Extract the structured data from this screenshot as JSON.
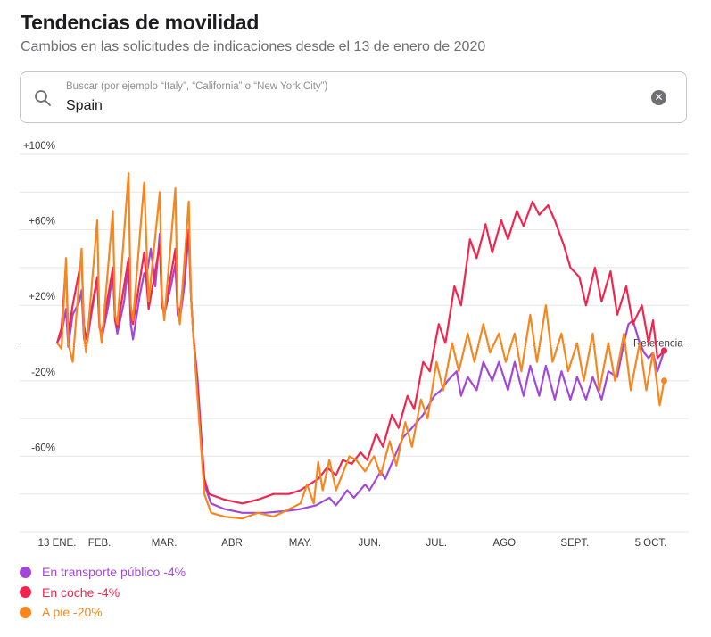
{
  "header": {
    "title": "Tendencias de movilidad",
    "subtitle": "Cambios en las solicitudes de indicaciones desde el 13 de enero de 2020"
  },
  "search": {
    "placeholder": "Buscar (por ejemplo “Italy”, “California” o “New York City”)",
    "value": "Spain",
    "clear_icon": "clear-icon",
    "search_icon": "magnifying-glass-icon"
  },
  "chart_data": {
    "type": "line",
    "x_unit": "date",
    "x_range": [
      "2020-01-13",
      "2020-10-22"
    ],
    "ylim": [
      -100,
      100
    ],
    "yticks": [
      {
        "value": 100,
        "label": "+100%"
      },
      {
        "value": 60,
        "label": "+60%"
      },
      {
        "value": 20,
        "label": "+20%"
      },
      {
        "value": -20,
        "label": "-20%"
      },
      {
        "value": -60,
        "label": "-60%"
      }
    ],
    "gridlines": [
      100,
      80,
      60,
      40,
      20,
      -20,
      -40,
      -60,
      -80,
      -100
    ],
    "xticks": [
      {
        "date": "2020-01-13",
        "label": "13 ENE."
      },
      {
        "date": "2020-02-01",
        "label": "FEB."
      },
      {
        "date": "2020-03-01",
        "label": "MAR."
      },
      {
        "date": "2020-04-01",
        "label": "ABR."
      },
      {
        "date": "2020-05-01",
        "label": "MAY."
      },
      {
        "date": "2020-06-01",
        "label": "JUN."
      },
      {
        "date": "2020-07-01",
        "label": "JUL."
      },
      {
        "date": "2020-08-01",
        "label": "AGO."
      },
      {
        "date": "2020-09-01",
        "label": "SEPT."
      },
      {
        "date": "2020-10-05",
        "label": "5 OCT."
      }
    ],
    "baseline": {
      "value": 0,
      "label": "Referencia"
    },
    "series": [
      {
        "name": "En transporte público",
        "legend": "En transporte público -4%",
        "color": "#a348d6",
        "points": [
          [
            "2020-01-13",
            0
          ],
          [
            "2020-01-15",
            5
          ],
          [
            "2020-01-17",
            18
          ],
          [
            "2020-01-18",
            -2
          ],
          [
            "2020-01-20",
            15
          ],
          [
            "2020-01-23",
            22
          ],
          [
            "2020-01-24",
            28
          ],
          [
            "2020-01-25",
            3
          ],
          [
            "2020-01-26",
            -3
          ],
          [
            "2020-01-29",
            20
          ],
          [
            "2020-01-31",
            33
          ],
          [
            "2020-02-01",
            10
          ],
          [
            "2020-02-02",
            2
          ],
          [
            "2020-02-05",
            20
          ],
          [
            "2020-02-07",
            38
          ],
          [
            "2020-02-08",
            12
          ],
          [
            "2020-02-09",
            5
          ],
          [
            "2020-02-12",
            22
          ],
          [
            "2020-02-14",
            42
          ],
          [
            "2020-02-15",
            10
          ],
          [
            "2020-02-16",
            2
          ],
          [
            "2020-02-19",
            25
          ],
          [
            "2020-02-21",
            37
          ],
          [
            "2020-02-22",
            35
          ],
          [
            "2020-02-24",
            50
          ],
          [
            "2020-02-26",
            30
          ],
          [
            "2020-02-28",
            58
          ],
          [
            "2020-02-29",
            22
          ],
          [
            "2020-03-01",
            15
          ],
          [
            "2020-03-04",
            30
          ],
          [
            "2020-03-06",
            42
          ],
          [
            "2020-03-07",
            15
          ],
          [
            "2020-03-08",
            12
          ],
          [
            "2020-03-10",
            30
          ],
          [
            "2020-03-12",
            58
          ],
          [
            "2020-03-13",
            25
          ],
          [
            "2020-03-14",
            5
          ],
          [
            "2020-03-16",
            -20
          ],
          [
            "2020-03-19",
            -75
          ],
          [
            "2020-03-22",
            -85
          ],
          [
            "2020-03-28",
            -88
          ],
          [
            "2020-04-05",
            -90
          ],
          [
            "2020-04-15",
            -90
          ],
          [
            "2020-04-25",
            -89
          ],
          [
            "2020-05-01",
            -88
          ],
          [
            "2020-05-08",
            -86
          ],
          [
            "2020-05-14",
            -82
          ],
          [
            "2020-05-17",
            -86
          ],
          [
            "2020-05-22",
            -78
          ],
          [
            "2020-05-25",
            -82
          ],
          [
            "2020-05-30",
            -75
          ],
          [
            "2020-06-01",
            -78
          ],
          [
            "2020-06-06",
            -68
          ],
          [
            "2020-06-08",
            -72
          ],
          [
            "2020-06-13",
            -58
          ],
          [
            "2020-06-16",
            -50
          ],
          [
            "2020-06-20",
            -45
          ],
          [
            "2020-06-25",
            -38
          ],
          [
            "2020-06-30",
            -28
          ],
          [
            "2020-07-03",
            -25
          ],
          [
            "2020-07-06",
            -20
          ],
          [
            "2020-07-10",
            -15
          ],
          [
            "2020-07-12",
            -28
          ],
          [
            "2020-07-15",
            -18
          ],
          [
            "2020-07-19",
            -25
          ],
          [
            "2020-07-22",
            -10
          ],
          [
            "2020-07-26",
            -20
          ],
          [
            "2020-07-29",
            -10
          ],
          [
            "2020-08-02",
            -25
          ],
          [
            "2020-08-05",
            -10
          ],
          [
            "2020-08-09",
            -28
          ],
          [
            "2020-08-12",
            -12
          ],
          [
            "2020-08-16",
            -28
          ],
          [
            "2020-08-19",
            -12
          ],
          [
            "2020-08-23",
            -30
          ],
          [
            "2020-08-26",
            -15
          ],
          [
            "2020-08-30",
            -30
          ],
          [
            "2020-09-02",
            -18
          ],
          [
            "2020-09-06",
            -30
          ],
          [
            "2020-09-09",
            -18
          ],
          [
            "2020-09-13",
            -30
          ],
          [
            "2020-09-16",
            -15
          ],
          [
            "2020-09-20",
            -18
          ],
          [
            "2020-09-23",
            0
          ],
          [
            "2020-09-25",
            10
          ],
          [
            "2020-09-27",
            12
          ],
          [
            "2020-09-30",
            0
          ],
          [
            "2020-10-02",
            -5
          ],
          [
            "2020-10-04",
            -8
          ],
          [
            "2020-10-06",
            -5
          ],
          [
            "2020-10-08",
            -15
          ],
          [
            "2020-10-11",
            -4
          ]
        ]
      },
      {
        "name": "En coche",
        "legend": "En coche -4%",
        "color": "#f0264f",
        "points": [
          [
            "2020-01-13",
            0
          ],
          [
            "2020-01-15",
            8
          ],
          [
            "2020-01-17",
            42
          ],
          [
            "2020-01-18",
            5
          ],
          [
            "2020-01-20",
            20
          ],
          [
            "2020-01-24",
            45
          ],
          [
            "2020-01-25",
            10
          ],
          [
            "2020-01-26",
            2
          ],
          [
            "2020-01-31",
            35
          ],
          [
            "2020-02-01",
            8
          ],
          [
            "2020-02-02",
            5
          ],
          [
            "2020-02-07",
            40
          ],
          [
            "2020-02-08",
            12
          ],
          [
            "2020-02-09",
            8
          ],
          [
            "2020-02-14",
            45
          ],
          [
            "2020-02-15",
            15
          ],
          [
            "2020-02-16",
            10
          ],
          [
            "2020-02-21",
            48
          ],
          [
            "2020-02-23",
            18
          ],
          [
            "2020-02-28",
            52
          ],
          [
            "2020-02-29",
            20
          ],
          [
            "2020-03-01",
            15
          ],
          [
            "2020-03-06",
            50
          ],
          [
            "2020-03-07",
            20
          ],
          [
            "2020-03-08",
            15
          ],
          [
            "2020-03-12",
            60
          ],
          [
            "2020-03-13",
            25
          ],
          [
            "2020-03-14",
            5
          ],
          [
            "2020-03-16",
            -25
          ],
          [
            "2020-03-19",
            -72
          ],
          [
            "2020-03-21",
            -80
          ],
          [
            "2020-03-28",
            -83
          ],
          [
            "2020-04-05",
            -85
          ],
          [
            "2020-04-12",
            -83
          ],
          [
            "2020-04-19",
            -80
          ],
          [
            "2020-04-26",
            -80
          ],
          [
            "2020-05-01",
            -78
          ],
          [
            "2020-05-05",
            -75
          ],
          [
            "2020-05-09",
            -72
          ],
          [
            "2020-05-13",
            -66
          ],
          [
            "2020-05-17",
            -70
          ],
          [
            "2020-05-20",
            -62
          ],
          [
            "2020-05-24",
            -64
          ],
          [
            "2020-05-28",
            -58
          ],
          [
            "2020-05-31",
            -62
          ],
          [
            "2020-06-04",
            -48
          ],
          [
            "2020-06-07",
            -55
          ],
          [
            "2020-06-11",
            -38
          ],
          [
            "2020-06-14",
            -45
          ],
          [
            "2020-06-18",
            -28
          ],
          [
            "2020-06-21",
            -35
          ],
          [
            "2020-06-25",
            -10
          ],
          [
            "2020-06-28",
            -15
          ],
          [
            "2020-07-02",
            10
          ],
          [
            "2020-07-05",
            0
          ],
          [
            "2020-07-09",
            30
          ],
          [
            "2020-07-12",
            20
          ],
          [
            "2020-07-16",
            55
          ],
          [
            "2020-07-19",
            45
          ],
          [
            "2020-07-23",
            63
          ],
          [
            "2020-07-26",
            48
          ],
          [
            "2020-07-30",
            65
          ],
          [
            "2020-08-02",
            55
          ],
          [
            "2020-08-06",
            70
          ],
          [
            "2020-08-09",
            62
          ],
          [
            "2020-08-13",
            75
          ],
          [
            "2020-08-16",
            68
          ],
          [
            "2020-08-20",
            73
          ],
          [
            "2020-08-23",
            65
          ],
          [
            "2020-08-27",
            52
          ],
          [
            "2020-08-30",
            40
          ],
          [
            "2020-09-03",
            35
          ],
          [
            "2020-09-06",
            20
          ],
          [
            "2020-09-10",
            40
          ],
          [
            "2020-09-13",
            22
          ],
          [
            "2020-09-17",
            38
          ],
          [
            "2020-09-20",
            15
          ],
          [
            "2020-09-24",
            30
          ],
          [
            "2020-09-27",
            10
          ],
          [
            "2020-10-01",
            20
          ],
          [
            "2020-10-04",
            0
          ],
          [
            "2020-10-06",
            12
          ],
          [
            "2020-10-08",
            -8
          ],
          [
            "2020-10-11",
            -4
          ]
        ]
      },
      {
        "name": "A pie",
        "legend": "A pie -20%",
        "color": "#f58720",
        "points": [
          [
            "2020-01-13",
            0
          ],
          [
            "2020-01-15",
            -3
          ],
          [
            "2020-01-17",
            45
          ],
          [
            "2020-01-18",
            0
          ],
          [
            "2020-01-20",
            -10
          ],
          [
            "2020-01-24",
            50
          ],
          [
            "2020-01-25",
            5
          ],
          [
            "2020-01-26",
            -5
          ],
          [
            "2020-01-31",
            65
          ],
          [
            "2020-02-01",
            10
          ],
          [
            "2020-02-02",
            0
          ],
          [
            "2020-02-07",
            70
          ],
          [
            "2020-02-08",
            15
          ],
          [
            "2020-02-09",
            10
          ],
          [
            "2020-02-14",
            90
          ],
          [
            "2020-02-15",
            20
          ],
          [
            "2020-02-16",
            12
          ],
          [
            "2020-02-21",
            85
          ],
          [
            "2020-02-23",
            22
          ],
          [
            "2020-02-28",
            80
          ],
          [
            "2020-02-29",
            25
          ],
          [
            "2020-03-01",
            12
          ],
          [
            "2020-03-06",
            82
          ],
          [
            "2020-03-07",
            20
          ],
          [
            "2020-03-08",
            10
          ],
          [
            "2020-03-12",
            75
          ],
          [
            "2020-03-13",
            25
          ],
          [
            "2020-03-14",
            5
          ],
          [
            "2020-03-16",
            -30
          ],
          [
            "2020-03-19",
            -80
          ],
          [
            "2020-03-22",
            -90
          ],
          [
            "2020-03-28",
            -92
          ],
          [
            "2020-04-05",
            -93
          ],
          [
            "2020-04-12",
            -90
          ],
          [
            "2020-04-19",
            -92
          ],
          [
            "2020-04-26",
            -88
          ],
          [
            "2020-05-01",
            -85
          ],
          [
            "2020-05-04",
            -75
          ],
          [
            "2020-05-07",
            -85
          ],
          [
            "2020-05-09",
            -63
          ],
          [
            "2020-05-11",
            -78
          ],
          [
            "2020-05-14",
            -62
          ],
          [
            "2020-05-17",
            -78
          ],
          [
            "2020-05-23",
            -60
          ],
          [
            "2020-05-26",
            -62
          ],
          [
            "2020-05-30",
            -68
          ],
          [
            "2020-06-03",
            -60
          ],
          [
            "2020-06-06",
            -70
          ],
          [
            "2020-06-10",
            -52
          ],
          [
            "2020-06-13",
            -65
          ],
          [
            "2020-06-17",
            -42
          ],
          [
            "2020-06-20",
            -55
          ],
          [
            "2020-06-24",
            -30
          ],
          [
            "2020-06-27",
            -40
          ],
          [
            "2020-07-01",
            -10
          ],
          [
            "2020-07-04",
            -25
          ],
          [
            "2020-07-08",
            0
          ],
          [
            "2020-07-11",
            -15
          ],
          [
            "2020-07-15",
            5
          ],
          [
            "2020-07-18",
            -10
          ],
          [
            "2020-07-22",
            10
          ],
          [
            "2020-07-25",
            -5
          ],
          [
            "2020-07-29",
            5
          ],
          [
            "2020-08-01",
            -10
          ],
          [
            "2020-08-05",
            5
          ],
          [
            "2020-08-08",
            -15
          ],
          [
            "2020-08-12",
            15
          ],
          [
            "2020-08-15",
            -10
          ],
          [
            "2020-08-19",
            20
          ],
          [
            "2020-08-22",
            -10
          ],
          [
            "2020-08-26",
            5
          ],
          [
            "2020-08-29",
            -15
          ],
          [
            "2020-09-02",
            0
          ],
          [
            "2020-09-05",
            -20
          ],
          [
            "2020-09-09",
            5
          ],
          [
            "2020-09-12",
            -25
          ],
          [
            "2020-09-16",
            0
          ],
          [
            "2020-09-19",
            -20
          ],
          [
            "2020-09-23",
            5
          ],
          [
            "2020-09-26",
            -25
          ],
          [
            "2020-09-30",
            0
          ],
          [
            "2020-10-03",
            -25
          ],
          [
            "2020-10-06",
            -5
          ],
          [
            "2020-10-09",
            -33
          ],
          [
            "2020-10-11",
            -20
          ]
        ]
      }
    ]
  }
}
